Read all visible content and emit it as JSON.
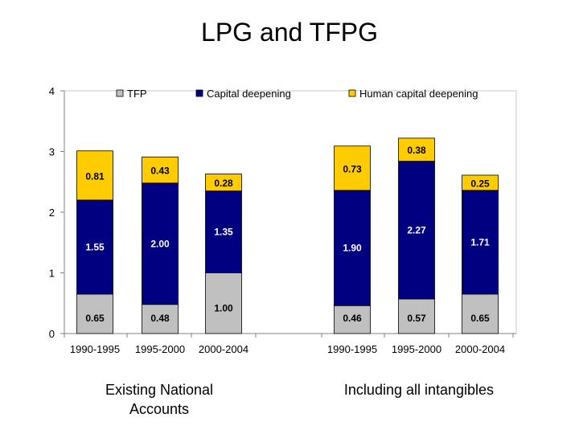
{
  "title": "LPG and TFPG",
  "captions": {
    "left": "Existing National Accounts",
    "right": "Including all intangibles"
  },
  "chart_data": {
    "type": "bar",
    "stacked": true,
    "title": "LPG and TFPG",
    "xlabel": "",
    "ylabel": "",
    "ylim": [
      0,
      4
    ],
    "yticks": [
      0,
      1,
      2,
      3,
      4
    ],
    "grid": false,
    "legend_position": "top",
    "categories": [
      "1990-1995",
      "1995-2000",
      "2000-2004",
      "1990-1995",
      "1995-2000",
      "2000-2004"
    ],
    "groups": [
      {
        "label": "Existing National Accounts",
        "category_indices": [
          0,
          1,
          2
        ]
      },
      {
        "label": "Including all intangibles",
        "category_indices": [
          3,
          4,
          5
        ]
      }
    ],
    "series": [
      {
        "name": "TFP",
        "color": "#c0c0c0",
        "values": [
          0.65,
          0.48,
          1.0,
          0.46,
          0.57,
          0.65
        ],
        "labels": [
          "0.65",
          "0.48",
          "1.00",
          "0.46",
          "0.57",
          "0.65"
        ]
      },
      {
        "name": "Capital deepening",
        "color": "#000080",
        "values": [
          1.55,
          2.0,
          1.35,
          1.9,
          2.27,
          1.71
        ],
        "labels": [
          "1.55",
          "2.00",
          "1.35",
          "1.90",
          "2.27",
          "1.71"
        ]
      },
      {
        "name": "Human capital deepening",
        "color": "#ffcc00",
        "values": [
          0.81,
          0.43,
          0.28,
          0.73,
          0.38,
          0.25
        ],
        "labels": [
          "0.81",
          "0.43",
          "0.28",
          "0.73",
          "0.38",
          "0.25"
        ]
      }
    ]
  }
}
